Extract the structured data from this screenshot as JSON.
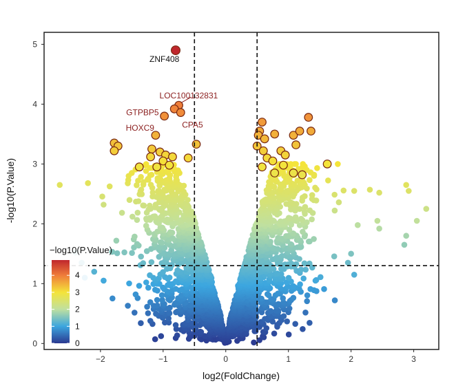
{
  "chart_data": {
    "type": "scatter",
    "title": "",
    "xlabel": "log2(FoldChange)",
    "ylabel": "-log10(P.Value)",
    "xlim": [
      -2.9,
      3.4
    ],
    "ylim": [
      -0.1,
      5.2
    ],
    "x_ticks": [
      -2,
      -1,
      0,
      1,
      2,
      3
    ],
    "x_tick_labels": [
      "−2",
      "−1",
      "0",
      "1",
      "2",
      "3"
    ],
    "y_ticks": [
      0,
      1,
      2,
      3,
      4,
      5
    ],
    "y_tick_labels": [
      "0",
      "1",
      "2",
      "3",
      "4",
      "5"
    ],
    "grid": false,
    "thresholds": {
      "fold_change_vlines": [
        -0.5,
        0.5
      ],
      "pvalue_hline": 1.3,
      "line_style": "dashed",
      "line_color": "#111111"
    },
    "color_scale": {
      "variable": "-log10(P.Value)",
      "range": [
        0,
        4.9
      ],
      "stops": [
        {
          "value": 0,
          "color": "#2b3990"
        },
        {
          "value": 1,
          "color": "#3ca6df"
        },
        {
          "value": 2,
          "color": "#bfe0a0"
        },
        {
          "value": 3,
          "color": "#f4e43a"
        },
        {
          "value": 4,
          "color": "#ef7c3a"
        },
        {
          "value": 4.9,
          "color": "#c0272d"
        }
      ]
    },
    "legend": {
      "title": "−log10(P.Value)",
      "ticks": [
        0,
        1,
        2,
        3,
        4
      ],
      "tick_labels": [
        "0",
        "1",
        "2",
        "3",
        "4"
      ],
      "placement": "bottom-left"
    },
    "highlight_points": [
      {
        "x": -0.8,
        "y": 4.9
      },
      {
        "x": -0.75,
        "y": 3.98
      },
      {
        "x": -0.82,
        "y": 3.92
      },
      {
        "x": -0.72,
        "y": 3.86
      },
      {
        "x": -0.98,
        "y": 3.8
      },
      {
        "x": -1.78,
        "y": 3.35
      },
      {
        "x": -1.72,
        "y": 3.3
      },
      {
        "x": -1.78,
        "y": 3.22
      },
      {
        "x": -1.12,
        "y": 3.48
      },
      {
        "x": -1.18,
        "y": 3.25
      },
      {
        "x": -1.05,
        "y": 3.2
      },
      {
        "x": -1.2,
        "y": 3.12
      },
      {
        "x": -0.96,
        "y": 3.15
      },
      {
        "x": -0.85,
        "y": 3.12
      },
      {
        "x": -1.0,
        "y": 3.05
      },
      {
        "x": -0.6,
        "y": 3.1
      },
      {
        "x": -0.47,
        "y": 3.33
      },
      {
        "x": -1.38,
        "y": 2.95
      },
      {
        "x": -1.1,
        "y": 2.95
      },
      {
        "x": -0.9,
        "y": 2.98
      },
      {
        "x": 0.5,
        "y": 3.3
      },
      {
        "x": 0.54,
        "y": 3.55
      },
      {
        "x": 0.58,
        "y": 3.7
      },
      {
        "x": 0.52,
        "y": 3.48
      },
      {
        "x": 0.62,
        "y": 3.42
      },
      {
        "x": 0.6,
        "y": 3.22
      },
      {
        "x": 0.78,
        "y": 3.5
      },
      {
        "x": 0.88,
        "y": 3.22
      },
      {
        "x": 0.95,
        "y": 3.15
      },
      {
        "x": 0.66,
        "y": 3.1
      },
      {
        "x": 0.75,
        "y": 3.05
      },
      {
        "x": 1.08,
        "y": 3.48
      },
      {
        "x": 1.18,
        "y": 3.55
      },
      {
        "x": 1.12,
        "y": 3.32
      },
      {
        "x": 1.32,
        "y": 3.78
      },
      {
        "x": 1.36,
        "y": 3.55
      },
      {
        "x": 0.58,
        "y": 2.95
      },
      {
        "x": 0.92,
        "y": 2.98
      },
      {
        "x": 1.62,
        "y": 3.0
      },
      {
        "x": 0.78,
        "y": 2.85
      },
      {
        "x": 1.08,
        "y": 2.85
      },
      {
        "x": 1.22,
        "y": 2.82
      }
    ],
    "background_points": [
      {
        "x": -2.65,
        "y": 2.65
      },
      {
        "x": -2.2,
        "y": 2.68
      },
      {
        "x": -1.95,
        "y": 2.32
      },
      {
        "x": -1.55,
        "y": 2.8
      },
      {
        "x": -1.5,
        "y": 2.85
      },
      {
        "x": 2.3,
        "y": 2.57
      },
      {
        "x": 2.05,
        "y": 2.55
      },
      {
        "x": 2.45,
        "y": 2.52
      },
      {
        "x": 2.88,
        "y": 2.65
      },
      {
        "x": 2.92,
        "y": 2.55
      },
      {
        "x": 3.2,
        "y": 2.25
      },
      {
        "x": 3.05,
        "y": 2.05
      },
      {
        "x": 2.88,
        "y": 1.8
      },
      {
        "x": 2.85,
        "y": 1.65
      },
      {
        "x": 2.42,
        "y": 2.05
      },
      {
        "x": 2.45,
        "y": 1.92
      },
      {
        "x": 2.0,
        "y": 1.5
      },
      {
        "x": 1.95,
        "y": 1.35
      },
      {
        "x": 2.05,
        "y": 1.15
      },
      {
        "x": -2.3,
        "y": 1.35
      },
      {
        "x": -2.4,
        "y": 1.52
      },
      {
        "x": -2.25,
        "y": 1.1
      },
      {
        "x": -2.1,
        "y": 1.2
      },
      {
        "x": -1.95,
        "y": 1.05
      }
    ],
    "labels": [
      {
        "text": "ZNF408",
        "x": -0.8,
        "y": 4.9,
        "color": "#111111"
      },
      {
        "text": "LOC100132831",
        "x": -0.75,
        "y": 3.98,
        "color": "#8b1f1f"
      },
      {
        "text": "GTPBP5",
        "x": -0.82,
        "y": 3.92,
        "color": "#8b1f1f"
      },
      {
        "text": "CPA5",
        "x": -0.72,
        "y": 3.86,
        "color": "#8b1f1f"
      },
      {
        "text": "HOXC9",
        "x": -0.98,
        "y": 3.8,
        "color": "#8b1f1f"
      }
    ]
  }
}
